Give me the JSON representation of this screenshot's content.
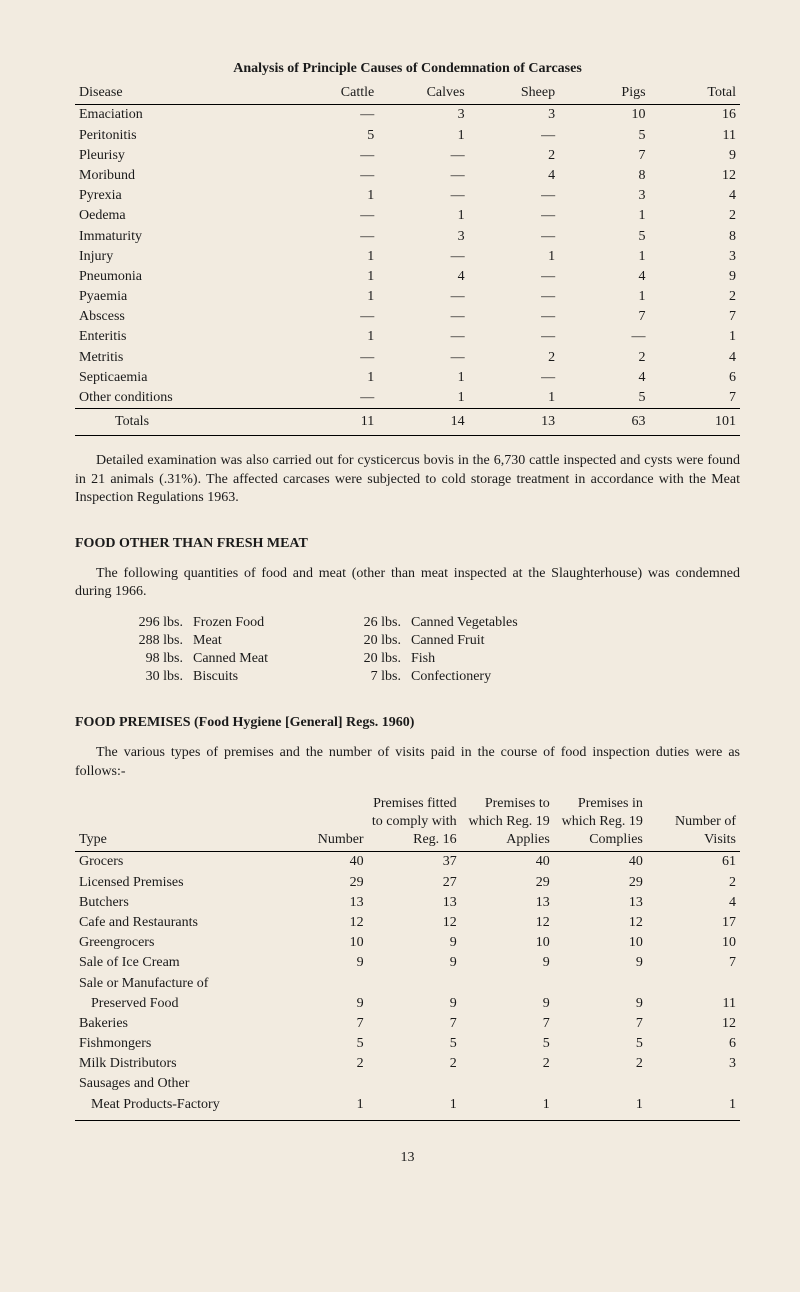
{
  "table1": {
    "title": "Analysis of Principle Causes of Condemnation of Carcases",
    "headers": [
      "Disease",
      "Cattle",
      "Calves",
      "Sheep",
      "Pigs",
      "Total"
    ],
    "rows": [
      [
        "Emaciation",
        "—",
        "3",
        "3",
        "10",
        "16"
      ],
      [
        "Peritonitis",
        "5",
        "1",
        "—",
        "5",
        "11"
      ],
      [
        "Pleurisy",
        "—",
        "—",
        "2",
        "7",
        "9"
      ],
      [
        "Moribund",
        "—",
        "—",
        "4",
        "8",
        "12"
      ],
      [
        "Pyrexia",
        "1",
        "—",
        "—",
        "3",
        "4"
      ],
      [
        "Oedema",
        "—",
        "1",
        "—",
        "1",
        "2"
      ],
      [
        "Immaturity",
        "—",
        "3",
        "—",
        "5",
        "8"
      ],
      [
        "Injury",
        "1",
        "—",
        "1",
        "1",
        "3"
      ],
      [
        "Pneumonia",
        "1",
        "4",
        "—",
        "4",
        "9"
      ],
      [
        "Pyaemia",
        "1",
        "—",
        "—",
        "1",
        "2"
      ],
      [
        "Abscess",
        "—",
        "—",
        "—",
        "7",
        "7"
      ],
      [
        "Enteritis",
        "1",
        "—",
        "—",
        "—",
        "1"
      ],
      [
        "Metritis",
        "—",
        "—",
        "2",
        "2",
        "4"
      ],
      [
        "Septicaemia",
        "1",
        "1",
        "—",
        "4",
        "6"
      ],
      [
        "Other conditions",
        "—",
        "1",
        "1",
        "5",
        "7"
      ]
    ],
    "totals": [
      "Totals",
      "11",
      "14",
      "13",
      "63",
      "101"
    ]
  },
  "para1": "Detailed examination was also carried out for cysticercus bovis in the 6,730 cattle inspected and cysts were found in 21 animals (.31%). The affected carcases were subjected to cold storage treatment in accordance with the Meat Inspection Regulations 1963.",
  "section2_title": "FOOD OTHER THAN FRESH MEAT",
  "para2": "The following quantities of food and meat (other than meat inspected at the Slaughterhouse) was condemned during 1966.",
  "food_left": [
    [
      "296 lbs.",
      "Frozen Food"
    ],
    [
      "288 lbs.",
      "Meat"
    ],
    [
      "98 lbs.",
      "Canned Meat"
    ],
    [
      "30 lbs.",
      "Biscuits"
    ]
  ],
  "food_right": [
    [
      "26 lbs.",
      "Canned Vegetables"
    ],
    [
      "20 lbs.",
      "Canned Fruit"
    ],
    [
      "20 lbs.",
      "Fish"
    ],
    [
      "7 lbs.",
      "Confectionery"
    ]
  ],
  "section3_title": "FOOD PREMISES (Food Hygiene [General] Regs. 1960)",
  "para3": "The various types of premises and the number of visits paid in the course of food inspection duties were as follows:-",
  "table2": {
    "headers": [
      "Type",
      "Number",
      "Premises fitted to comply with Reg. 16",
      "Premises to which Reg. 19 Applies",
      "Premises in which Reg. 19 Complies",
      "Number of Visits"
    ],
    "rows": [
      {
        "cells": [
          "Grocers",
          "40",
          "37",
          "40",
          "40",
          "61"
        ],
        "indent": false
      },
      {
        "cells": [
          "Licensed Premises",
          "29",
          "27",
          "29",
          "29",
          "2"
        ],
        "indent": false
      },
      {
        "cells": [
          "Butchers",
          "13",
          "13",
          "13",
          "13",
          "4"
        ],
        "indent": false
      },
      {
        "cells": [
          "Cafe and Restaurants",
          "12",
          "12",
          "12",
          "12",
          "17"
        ],
        "indent": false
      },
      {
        "cells": [
          "Greengrocers",
          "10",
          "9",
          "10",
          "10",
          "10"
        ],
        "indent": false
      },
      {
        "cells": [
          "Sale of Ice Cream",
          "9",
          "9",
          "9",
          "9",
          "7"
        ],
        "indent": false
      },
      {
        "cells": [
          "Sale or Manufacture of",
          "",
          "",
          "",
          "",
          ""
        ],
        "indent": false
      },
      {
        "cells": [
          "Preserved Food",
          "9",
          "9",
          "9",
          "9",
          "11"
        ],
        "indent": true
      },
      {
        "cells": [
          "Bakeries",
          "7",
          "7",
          "7",
          "7",
          "12"
        ],
        "indent": false
      },
      {
        "cells": [
          "Fishmongers",
          "5",
          "5",
          "5",
          "5",
          "6"
        ],
        "indent": false
      },
      {
        "cells": [
          "Milk Distributors",
          "2",
          "2",
          "2",
          "2",
          "3"
        ],
        "indent": false
      },
      {
        "cells": [
          "Sausages and Other",
          "",
          "",
          "",
          "",
          ""
        ],
        "indent": false
      },
      {
        "cells": [
          "Meat Products-Factory",
          "1",
          "1",
          "1",
          "1",
          "1"
        ],
        "indent": true
      }
    ]
  },
  "page_number": "13"
}
